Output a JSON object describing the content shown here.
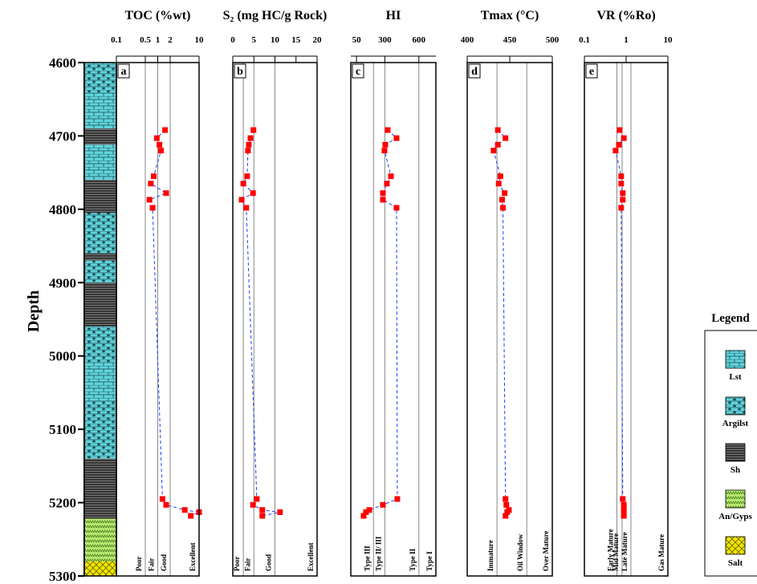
{
  "depth_axis": {
    "label": "Depth",
    "lim": [
      4600,
      5300
    ],
    "ticks": [
      4600,
      4700,
      4800,
      4900,
      5000,
      5100,
      5200,
      5300
    ]
  },
  "lithology": {
    "intervals": [
      {
        "top": 4600,
        "base": 4640,
        "rock": "Argilst"
      },
      {
        "top": 4640,
        "base": 4690,
        "rock": "Lst"
      },
      {
        "top": 4690,
        "base": 4712,
        "rock": "Sh"
      },
      {
        "top": 4712,
        "base": 4760,
        "rock": "Lst"
      },
      {
        "top": 4760,
        "base": 4805,
        "rock": "Sh"
      },
      {
        "top": 4805,
        "base": 4860,
        "rock": "Argilst"
      },
      {
        "top": 4860,
        "base": 4870,
        "rock": "Sh"
      },
      {
        "top": 4870,
        "base": 4900,
        "rock": "Argilst"
      },
      {
        "top": 4900,
        "base": 4960,
        "rock": "Sh"
      },
      {
        "top": 4960,
        "base": 5010,
        "rock": "Argilst"
      },
      {
        "top": 5010,
        "base": 5060,
        "rock": "Lst"
      },
      {
        "top": 5060,
        "base": 5140,
        "rock": "Argilst"
      },
      {
        "top": 5140,
        "base": 5222,
        "rock": "Sh"
      },
      {
        "top": 5222,
        "base": 5280,
        "rock": "An/Gyps"
      },
      {
        "top": 5280,
        "base": 5300,
        "rock": "Salt"
      }
    ]
  },
  "legend": {
    "title": "Legend",
    "items": [
      "Lst",
      "Argilst",
      "Sh",
      "An/Gyps",
      "Salt"
    ]
  },
  "chart_data": [
    {
      "type": "scatter",
      "title": "TOC (%wt)",
      "letter": "a",
      "log": true,
      "xlim": [
        0.1,
        10
      ],
      "xticks": [
        0.1,
        0.5,
        1,
        2,
        10
      ],
      "zone_lines": [
        0.5,
        1,
        2
      ],
      "zones": [
        "Poor",
        "Fair",
        "Good",
        "Excellent"
      ],
      "color": "#ff0000",
      "line_color": "#1a3cff",
      "depth": [
        4692,
        4703,
        4712,
        4720,
        4755,
        4765,
        4778,
        4787,
        4798,
        5195,
        5203,
        5210,
        5213,
        5218
      ],
      "values": [
        1.5,
        0.95,
        1.1,
        1.2,
        0.8,
        0.68,
        1.6,
        0.63,
        0.75,
        1.3,
        1.6,
        4.5,
        10,
        6.3
      ]
    },
    {
      "type": "scatter",
      "title": "S₂ (mg HC/g Rock)",
      "letter": "b",
      "log": false,
      "xlim": [
        0,
        20
      ],
      "xticks": [
        0,
        5,
        10,
        15,
        20
      ],
      "zone_lines": [
        2.5,
        5,
        10
      ],
      "zones": [
        "Poor",
        "Fair",
        "Good",
        "Excellent"
      ],
      "color": "#ff0000",
      "line_color": "#1a3cff",
      "depth": [
        4692,
        4703,
        4712,
        4720,
        4755,
        4765,
        4778,
        4787,
        4798,
        5195,
        5203,
        5210,
        5213,
        5218
      ],
      "values": [
        4.9,
        4.2,
        3.8,
        3.6,
        3.4,
        2.5,
        4.8,
        2.1,
        3.2,
        5.7,
        4.8,
        7,
        11.2,
        7
      ]
    },
    {
      "type": "scatter",
      "title": "HI",
      "letter": "c",
      "log": false,
      "xlim": [
        0,
        750
      ],
      "xticks": [
        50,
        300,
        600
      ],
      "zone_lines": [
        200,
        300,
        600
      ],
      "zones": [
        "Type III",
        "Type II/ III",
        "Type II",
        "Type I"
      ],
      "color": "#ff0000",
      "line_color": "#1a3cff",
      "depth": [
        4692,
        4703,
        4712,
        4720,
        4755,
        4765,
        4778,
        4787,
        4798,
        5195,
        5203,
        5210,
        5213,
        5218
      ],
      "values": [
        325,
        403,
        304,
        297,
        354,
        318,
        283,
        283,
        403,
        410,
        283,
        163,
        134,
        113
      ]
    },
    {
      "type": "scatter",
      "title": "Tmax (°C)",
      "letter": "d",
      "log": false,
      "xlim": [
        400,
        500
      ],
      "xticks": [
        400,
        450,
        500
      ],
      "zone_lines": [
        435,
        470
      ],
      "zones": [
        "Immature",
        "Oil Window",
        "Over Mature"
      ],
      "color": "#ff0000",
      "line_color": "#1a3cff",
      "depth": [
        4692,
        4703,
        4712,
        4720,
        4755,
        4765,
        4778,
        4787,
        4798,
        5195,
        5203,
        5210,
        5213,
        5218
      ],
      "values": [
        436,
        445,
        436,
        431,
        439,
        437,
        444,
        441,
        442,
        445,
        446,
        449,
        447,
        445
      ]
    },
    {
      "type": "scatter",
      "title": "VR (%Ro)",
      "letter": "e",
      "log": true,
      "xlim": [
        0.1,
        10
      ],
      "xticks": [
        0.1,
        1,
        10
      ],
      "zone_lines": [
        0.6,
        0.8,
        1.3
      ],
      "zones": [
        "Early Mature",
        "Mid Mature",
        "Late Mature",
        "Gas Mature"
      ],
      "color": "#ff0000",
      "line_color": "#1a3cff",
      "depth": [
        4692,
        4703,
        4712,
        4720,
        4755,
        4765,
        4778,
        4787,
        4798,
        5195,
        5203,
        5210,
        5213,
        5218
      ],
      "values": [
        0.7,
        0.88,
        0.67,
        0.56,
        0.76,
        0.76,
        0.83,
        0.83,
        0.76,
        0.83,
        0.88,
        0.88,
        0.88,
        0.88
      ]
    }
  ]
}
